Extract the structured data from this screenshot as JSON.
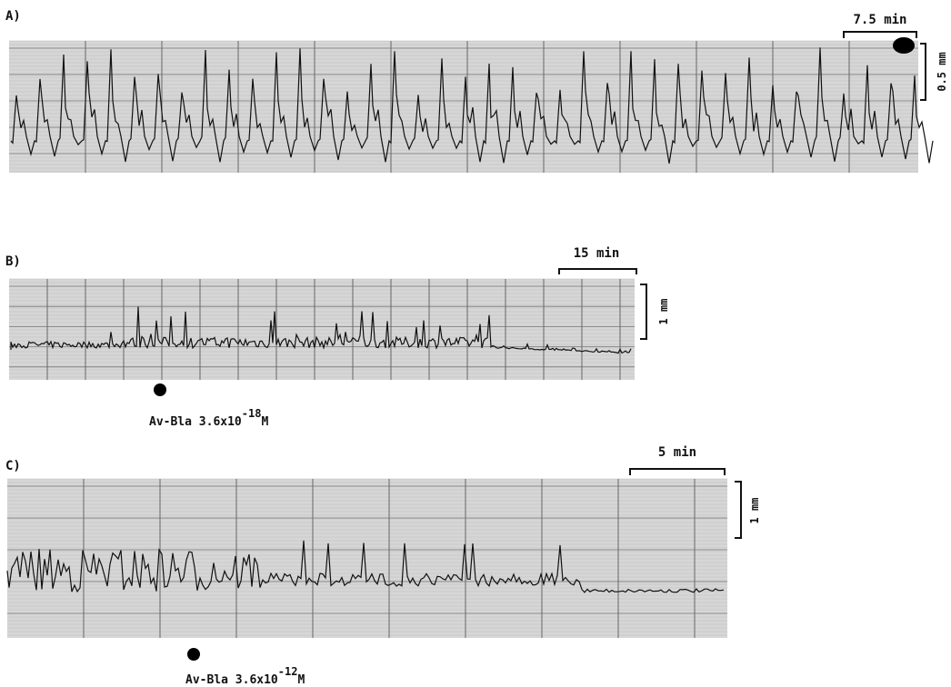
{
  "panels": [
    {
      "label": "A)",
      "time_scale": "7.5 min",
      "amplitude_scale": "0.5 mm"
    },
    {
      "label": "B)",
      "time_scale": "15 min",
      "amplitude_scale": "1 mm",
      "annotation": {
        "prefix": "Av-Bla 3.6x10",
        "exponent": "-18",
        "unit": "M"
      }
    },
    {
      "label": "C)",
      "time_scale": "5 min",
      "amplitude_scale": "1 mm",
      "annotation": {
        "prefix": "Av-Bla 3.6x10",
        "exponent": "-12",
        "unit": "M"
      }
    }
  ]
}
